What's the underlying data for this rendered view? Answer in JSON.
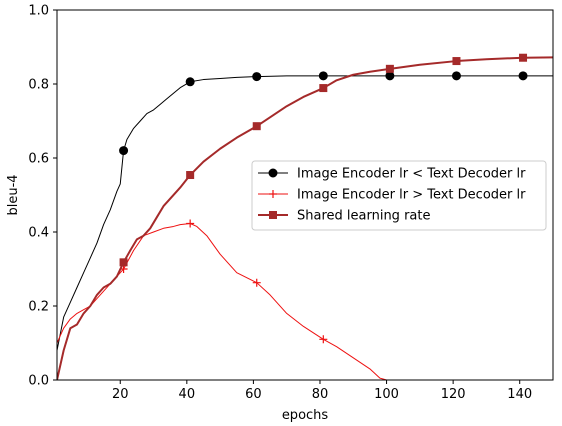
{
  "chart_data": {
    "type": "line",
    "title": "",
    "xlabel": "epochs",
    "ylabel": "bleu-4",
    "xlim": [
      1,
      150
    ],
    "ylim": [
      0,
      1.0
    ],
    "xticks": [
      20,
      40,
      60,
      80,
      100,
      120,
      140
    ],
    "xtick_labels": [
      "20",
      "40",
      "60",
      "80",
      "100",
      "120",
      "140"
    ],
    "yticks": [
      0.0,
      0.2,
      0.4,
      0.6,
      0.8,
      1.0
    ],
    "ytick_labels": [
      "0.0",
      "0.2",
      "0.4",
      "0.6",
      "0.8",
      "1.0"
    ],
    "grid": false,
    "legend_position": "center-right",
    "series": [
      {
        "name": "Image Encoder lr < Text Decoder lr",
        "color": "#000000",
        "marker": "circle",
        "linewidth": 1,
        "marker_x": [
          21,
          41,
          61,
          81,
          101,
          121,
          141
        ],
        "x": [
          1,
          3,
          5,
          7,
          9,
          11,
          13,
          15,
          17,
          19,
          20,
          21,
          22,
          24,
          26,
          28,
          30,
          32,
          34,
          36,
          38,
          41,
          45,
          50,
          55,
          61,
          70,
          81,
          90,
          101,
          110,
          121,
          130,
          141,
          150
        ],
        "y": [
          0.08,
          0.17,
          0.21,
          0.25,
          0.29,
          0.33,
          0.37,
          0.42,
          0.46,
          0.51,
          0.53,
          0.62,
          0.65,
          0.68,
          0.7,
          0.72,
          0.73,
          0.745,
          0.76,
          0.775,
          0.79,
          0.806,
          0.812,
          0.815,
          0.818,
          0.82,
          0.822,
          0.822,
          0.822,
          0.822,
          0.822,
          0.822,
          0.822,
          0.822,
          0.822
        ]
      },
      {
        "name": "Image Encoder lr > Text Decoder lr",
        "color": "#ee1111",
        "marker": "plus",
        "linewidth": 1,
        "marker_x": [
          21,
          41,
          61,
          81
        ],
        "x": [
          1,
          3,
          5,
          7,
          9,
          11,
          13,
          15,
          17,
          19,
          21,
          24,
          27,
          30,
          33,
          36,
          38,
          41,
          43,
          46,
          50,
          55,
          61,
          65,
          70,
          75,
          81,
          85,
          90,
          95,
          98,
          100
        ],
        "y": [
          0.1,
          0.14,
          0.165,
          0.18,
          0.19,
          0.2,
          0.22,
          0.24,
          0.26,
          0.28,
          0.3,
          0.35,
          0.39,
          0.4,
          0.41,
          0.415,
          0.42,
          0.423,
          0.415,
          0.39,
          0.34,
          0.29,
          0.263,
          0.23,
          0.18,
          0.145,
          0.11,
          0.09,
          0.06,
          0.03,
          0.005,
          0.0
        ]
      },
      {
        "name": "Shared learning rate",
        "color": "#a52a2a",
        "marker": "square",
        "linewidth": 2,
        "marker_x": [
          21,
          41,
          61,
          81,
          101,
          121,
          141
        ],
        "x": [
          1,
          3,
          5,
          7,
          9,
          11,
          13,
          15,
          17,
          19,
          21,
          23,
          25,
          27,
          29,
          31,
          33,
          35,
          38,
          41,
          45,
          50,
          55,
          61,
          65,
          70,
          75,
          81,
          85,
          90,
          95,
          101,
          110,
          121,
          130,
          141,
          150
        ],
        "y": [
          0.0,
          0.08,
          0.14,
          0.15,
          0.18,
          0.2,
          0.23,
          0.25,
          0.26,
          0.28,
          0.318,
          0.35,
          0.38,
          0.39,
          0.41,
          0.44,
          0.47,
          0.49,
          0.52,
          0.554,
          0.59,
          0.625,
          0.655,
          0.686,
          0.71,
          0.74,
          0.765,
          0.789,
          0.81,
          0.825,
          0.833,
          0.841,
          0.852,
          0.862,
          0.867,
          0.871,
          0.872
        ]
      }
    ]
  }
}
